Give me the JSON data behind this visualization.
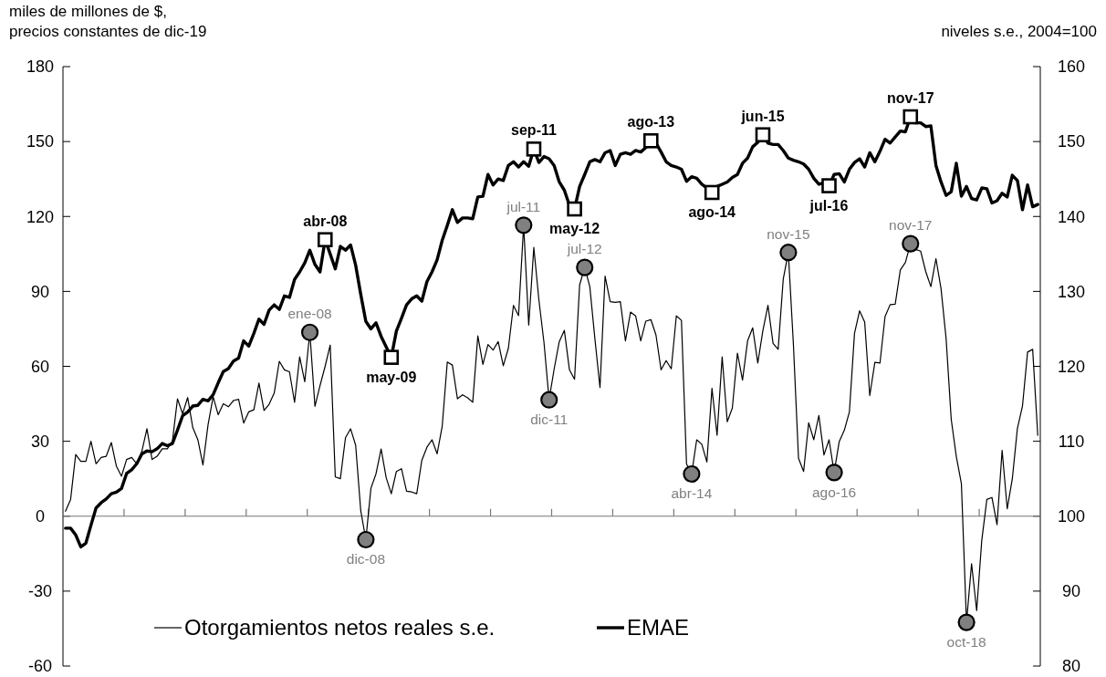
{
  "chart_data": {
    "type": "line",
    "ylabel": "miles de millones de $, precios constantes de dic-19",
    "y2label": "niveles s.e., 2004=100",
    "categories": [
      null,
      null,
      null,
      null,
      null,
      null,
      null,
      null,
      null,
      null,
      null,
      null,
      null,
      null,
      null,
      null,
      null,
      null,
      null,
      null,
      null,
      null,
      null,
      null,
      null,
      null,
      null,
      null,
      null,
      null,
      null,
      null,
      null,
      null,
      null,
      null,
      null,
      null,
      null,
      null,
      null,
      null,
      null,
      null,
      null,
      null,
      null,
      null,
      null,
      null,
      null,
      null,
      null,
      null,
      null,
      null,
      null,
      null,
      null,
      null,
      null,
      null,
      null,
      null,
      null,
      null,
      null,
      null,
      null,
      null,
      null,
      null,
      null,
      null,
      null,
      null,
      null,
      null,
      null,
      null,
      null,
      null,
      null,
      null,
      null,
      null,
      null,
      null,
      null,
      null,
      null,
      null,
      null,
      null,
      null,
      null,
      null,
      null,
      null,
      null,
      null,
      null,
      null,
      null,
      null,
      null,
      null,
      null,
      null,
      null,
      null,
      null,
      null,
      null,
      null,
      null,
      null,
      null,
      null,
      null,
      null,
      null,
      null,
      null,
      null,
      null,
      null,
      null,
      null,
      null,
      null,
      null,
      null,
      null,
      null,
      null,
      null,
      null,
      null,
      null,
      null,
      null,
      null,
      null,
      null,
      null,
      null,
      null,
      null,
      null,
      null,
      null,
      null,
      null,
      null,
      null,
      null,
      null,
      null,
      null,
      null,
      null,
      null,
      null,
      null,
      null,
      null,
      null,
      null,
      null,
      null,
      null,
      null,
      null,
      null,
      null,
      null,
      null,
      null,
      null,
      null,
      null,
      null,
      null,
      null,
      null,
      null,
      null,
      null,
      null,
      null,
      null
    ],
    "series": [
      {
        "name": "Otorgamientos netos reales s.e.",
        "color": "#000000",
        "values": [
          2,
          6.7,
          24.7,
          22,
          22,
          30,
          21,
          23.5,
          24,
          29.5,
          20,
          16,
          22.7,
          23.5,
          21,
          26,
          35,
          22.7,
          24,
          27,
          27,
          30,
          47,
          41,
          47.5,
          35.5,
          30.6,
          20.5,
          36.6,
          47.8,
          40.6,
          45,
          43.8,
          46.3,
          46.8,
          37.3,
          41.8,
          42.6,
          53.3,
          42.3,
          44.8,
          49.3,
          62,
          58.6,
          57.8,
          45.6,
          63.8,
          53.8,
          73.6,
          44,
          52.3,
          60,
          68.5,
          15.7,
          15,
          31.4,
          35,
          28.4,
          2.2,
          -9.4,
          11.2,
          17,
          26.9,
          15.4,
          9,
          17.9,
          19,
          10,
          9.7,
          9,
          22.4,
          27.6,
          30.6,
          25,
          35.9,
          61.7,
          60.5,
          47,
          48.6,
          47.4,
          45.6,
          72.2,
          60.8,
          68.7,
          66.5,
          69.9,
          60.2,
          67.2,
          84.4,
          80.3,
          116.5,
          76.5,
          107.6,
          86.6,
          69.5,
          46.6,
          59,
          69.9,
          74.4,
          58.6,
          54.8,
          92.6,
          99.6,
          91.9,
          71,
          51.5,
          96.1,
          85.9,
          85.6,
          85.9,
          70.2,
          81.7,
          80.2,
          70.2,
          78.1,
          78.7,
          72.5,
          58.6,
          62.3,
          59,
          80.2,
          78.4,
          20.9,
          16.9,
          30.6,
          28.8,
          21.7,
          51.2,
          32.4,
          63.8,
          37.8,
          43.3,
          65.3,
          54.5,
          70.2,
          75.4,
          61.3,
          74.3,
          84.4,
          69.2,
          66.8,
          94.9,
          105.6,
          68.7,
          23.2,
          17.9,
          37.4,
          30.6,
          40.3,
          24.5,
          30.6,
          17.5,
          29.9,
          34.4,
          41.8,
          73.2,
          82.2,
          77.7,
          48.3,
          61.6,
          61.3,
          79.9,
          84.7,
          84.9,
          98.6,
          101.6,
          109.1,
          106.8,
          106.1,
          97.9,
          91.9,
          103.1,
          91.1,
          71,
          38.8,
          23.9,
          13,
          -42.5,
          -19,
          -37.8,
          -9.7,
          6.7,
          7.5,
          -3.4,
          26.4,
          3,
          14.9,
          35.1,
          44.1,
          65.7,
          66.8,
          32.4
        ]
      },
      {
        "name": "EMAE",
        "color": "#000000",
        "axis": "y2",
        "values": [
          98.4,
          98.4,
          97.5,
          95.9,
          96.4,
          98.8,
          101.1,
          101.8,
          102.3,
          103,
          103.2,
          103.7,
          105.7,
          106.2,
          107,
          108.3,
          108.7,
          108.6,
          109,
          109.7,
          109.4,
          109.7,
          111.5,
          113.4,
          113.9,
          114.7,
          114.8,
          115.6,
          115.4,
          116.2,
          117.8,
          119.3,
          119.7,
          120.7,
          121.1,
          123.4,
          122.7,
          124.4,
          126.3,
          125.6,
          127.5,
          128.2,
          127.6,
          129.4,
          129.2,
          131.6,
          132.6,
          133.8,
          135.5,
          133.6,
          132.6,
          136.9,
          135,
          133,
          136,
          135.5,
          136.2,
          133.5,
          129.6,
          126,
          125,
          125.8,
          124,
          122.6,
          121.2,
          124.7,
          126.4,
          128.2,
          129,
          129.4,
          128.7,
          131.3,
          132.6,
          134.2,
          136.8,
          138.8,
          140.9,
          139.2,
          139.8,
          139.8,
          139.7,
          142.6,
          142.7,
          145.6,
          144.2,
          145,
          144.8,
          146.8,
          147.3,
          146.6,
          147.3,
          146.7,
          149,
          147.2,
          148,
          147.7,
          146.8,
          144.6,
          143.5,
          141.5,
          141,
          144.0,
          145.6,
          147.3,
          147.6,
          147.3,
          148.5,
          148.8,
          146.8,
          148.3,
          148.5,
          148.3,
          148.8,
          148.6,
          149.2,
          150.1,
          149.8,
          148.6,
          147.3,
          146.8,
          146.6,
          146.3,
          144.7,
          145.3,
          145.1,
          144.3,
          143.8,
          143.2,
          144.0,
          144.3,
          144.6,
          145.2,
          145.6,
          147.1,
          147.8,
          149.3,
          149.9,
          150.9,
          149.8,
          149.6,
          149.6,
          148.8,
          147.8,
          147.5,
          147.3,
          147,
          146.3,
          145.1,
          144.3,
          144.5,
          144.1,
          145.6,
          145.7,
          144.6,
          146.3,
          147.2,
          147.7,
          146.6,
          148.5,
          147.3,
          148.7,
          150.3,
          149.8,
          150.6,
          151.4,
          151.3,
          153.3,
          152.5,
          152.5,
          152,
          152.1,
          146.8,
          144.6,
          142.8,
          143.3,
          147.1,
          142.7,
          144.0,
          142.4,
          142.2,
          143.8,
          143.7,
          141.8,
          142.1,
          143.1,
          142.6,
          145.5,
          144.8,
          140.9,
          144.2,
          141.3,
          141.6
        ],
        "value_labels": [
          null,
          null,
          null,
          null,
          null,
          null,
          null,
          null,
          null,
          null,
          null,
          null,
          null,
          null,
          null,
          null,
          null,
          null,
          null,
          null,
          null,
          null,
          null,
          null,
          null,
          null,
          null,
          null,
          null,
          null,
          null,
          null,
          null,
          null,
          null,
          null,
          null,
          null,
          null,
          null,
          null,
          null,
          null,
          null,
          null,
          null,
          null,
          null,
          null,
          null,
          null,
          "abr-08",
          null,
          null,
          null,
          null,
          null,
          null,
          null,
          null,
          null,
          null,
          null,
          null,
          "may-09",
          null,
          null,
          null,
          null,
          null,
          null,
          null,
          null,
          null,
          null,
          null,
          null,
          null,
          null,
          null,
          null,
          null,
          null,
          null,
          null,
          null,
          null,
          null,
          null,
          null,
          null,
          null,
          "sep-11",
          null,
          null,
          null,
          null,
          null,
          null,
          null,
          "may-12",
          null,
          null,
          null,
          null,
          null,
          null,
          null,
          null,
          null,
          null,
          null,
          null,
          null,
          null,
          "ago-13",
          null,
          null,
          null,
          null,
          null,
          null,
          null,
          null,
          null,
          null,
          null,
          "ago-14",
          null,
          null,
          null,
          null,
          null,
          null,
          null,
          null,
          null,
          "jun-15",
          null,
          null,
          null,
          null,
          null,
          null,
          null,
          null,
          null,
          null,
          null,
          null,
          "jul-16",
          null,
          null,
          null,
          null,
          null,
          null,
          null,
          null,
          null,
          null,
          null,
          null,
          null,
          null,
          null,
          "nov-17",
          null,
          null,
          null,
          null,
          null,
          null,
          null,
          null,
          null,
          null,
          null,
          null,
          null,
          null,
          null,
          null,
          null,
          null,
          null,
          null,
          null,
          null,
          null,
          null,
          null
        ]
      }
    ],
    "annotations": [
      {
        "text": "ene-08",
        "y": 73.6
      },
      {
        "text": "dic-08",
        "y": -9.4
      },
      {
        "text": "jul-11",
        "y": 116.5
      },
      {
        "text": "dic-11",
        "y": 46.6
      },
      {
        "text": "jul-12",
        "y": 99.6
      },
      {
        "text": "abr-14",
        "y": 16.9
      },
      {
        "text": "nov-15",
        "y": 105.6
      },
      {
        "text": "ago-16",
        "y": 17.5
      },
      {
        "text": "nov-17",
        "y": 109.1
      },
      {
        "text": "oct-18",
        "y": -42.5
      }
    ],
    "ylim": [
      -60,
      180
    ],
    "yticks": [
      -60,
      -30,
      0,
      30,
      60,
      90,
      120,
      150,
      180
    ],
    "y2lim": [
      80,
      160
    ],
    "y2ticks": [
      80,
      90,
      100,
      110,
      120,
      130,
      140,
      150,
      160
    ],
    "legend": "bottom left",
    "line_style": "solid",
    "marker": "none"
  }
}
